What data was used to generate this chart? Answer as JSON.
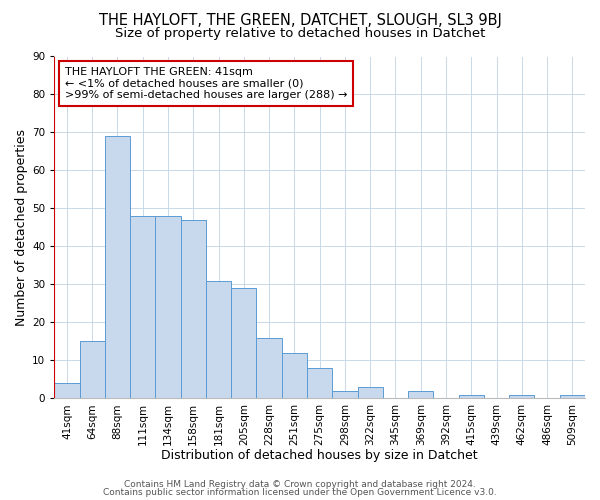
{
  "title": "THE HAYLOFT, THE GREEN, DATCHET, SLOUGH, SL3 9BJ",
  "subtitle": "Size of property relative to detached houses in Datchet",
  "xlabel": "Distribution of detached houses by size in Datchet",
  "ylabel": "Number of detached properties",
  "annotation_lines": [
    "THE HAYLOFT THE GREEN: 41sqm",
    "← <1% of detached houses are smaller (0)",
    ">99% of semi-detached houses are larger (288) →"
  ],
  "bar_labels": [
    "41sqm",
    "64sqm",
    "88sqm",
    "111sqm",
    "134sqm",
    "158sqm",
    "181sqm",
    "205sqm",
    "228sqm",
    "251sqm",
    "275sqm",
    "298sqm",
    "322sqm",
    "345sqm",
    "369sqm",
    "392sqm",
    "415sqm",
    "439sqm",
    "462sqm",
    "486sqm",
    "509sqm"
  ],
  "bar_values": [
    4,
    15,
    69,
    48,
    48,
    47,
    31,
    29,
    16,
    12,
    8,
    2,
    3,
    0,
    2,
    0,
    1,
    0,
    1,
    0,
    1
  ],
  "bar_color": "#c9d9ed",
  "bar_edge_color": "#5b9bd5",
  "highlight_color": "#cc0000",
  "ylim": [
    0,
    90
  ],
  "yticks": [
    0,
    10,
    20,
    30,
    40,
    50,
    60,
    70,
    80,
    90
  ],
  "grid_color": "#c8d8e8",
  "background_color": "#ffffff",
  "annotation_box_color": "#ffffff",
  "annotation_box_edge_color": "#cc0000",
  "footer_line1": "Contains HM Land Registry data © Crown copyright and database right 2024.",
  "footer_line2": "Contains public sector information licensed under the Open Government Licence v3.0.",
  "title_fontsize": 10.5,
  "subtitle_fontsize": 9.5,
  "axis_label_fontsize": 9,
  "tick_fontsize": 7.5,
  "annotation_fontsize": 8,
  "footer_fontsize": 6.5
}
